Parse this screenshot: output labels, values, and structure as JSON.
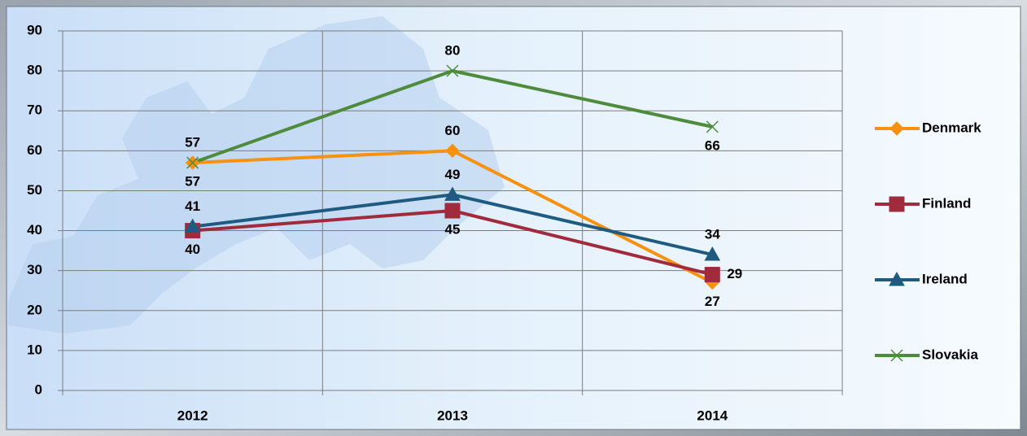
{
  "chart_data": {
    "type": "line",
    "categories": [
      "2012",
      "2013",
      "2014"
    ],
    "series": [
      {
        "name": "Denmark",
        "color": "#f7910f",
        "marker": "diamond",
        "values": [
          57,
          60,
          27
        ]
      },
      {
        "name": "Finland",
        "color": "#a02b3c",
        "marker": "square",
        "values": [
          40,
          45,
          29
        ]
      },
      {
        "name": "Ireland",
        "color": "#1f5b80",
        "marker": "triangle",
        "values": [
          41,
          49,
          34
        ]
      },
      {
        "name": "Slovakia",
        "color": "#4e8b3c",
        "marker": "x",
        "values": [
          57,
          80,
          66
        ]
      }
    ],
    "ylim": [
      0,
      90
    ],
    "yticks": [
      0,
      10,
      20,
      30,
      40,
      50,
      60,
      70,
      80,
      90
    ],
    "grid": true,
    "legend": "right",
    "data_labels": true
  }
}
